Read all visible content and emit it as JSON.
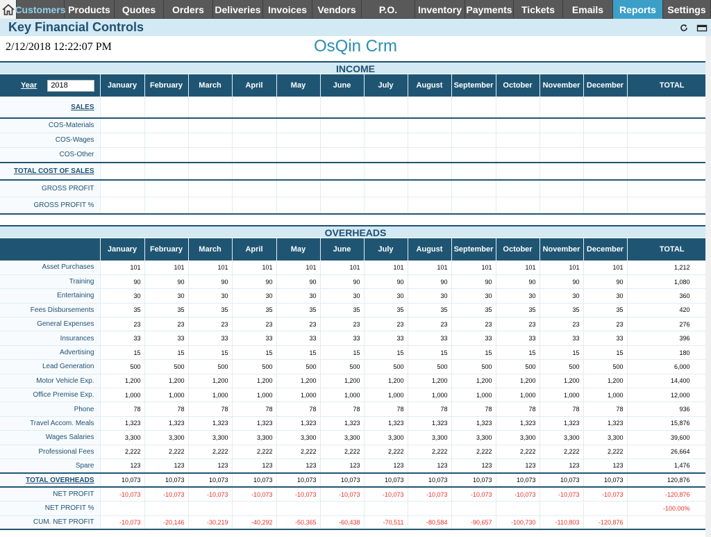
{
  "nav": {
    "items": [
      {
        "key": "customers",
        "label": "Customers",
        "w": 69,
        "state": "muted"
      },
      {
        "key": "products",
        "label": "Products",
        "w": 72
      },
      {
        "key": "quotes",
        "label": "Quotes",
        "w": 71
      },
      {
        "key": "orders",
        "label": "Orders",
        "w": 71
      },
      {
        "key": "deliveries",
        "label": "Deliveries",
        "w": 72
      },
      {
        "key": "invoices",
        "label": "Invoices",
        "w": 71
      },
      {
        "key": "vendors",
        "label": "Vendors",
        "w": 71
      },
      {
        "key": "po",
        "label": "P.O.",
        "w": 77
      },
      {
        "key": "inventory",
        "label": "Inventory",
        "w": 72
      },
      {
        "key": "payments",
        "label": "Payments",
        "w": 70
      },
      {
        "key": "tickets",
        "label": "Tickets",
        "w": 71
      },
      {
        "key": "emails",
        "label": "Emails",
        "w": 72
      },
      {
        "key": "reports",
        "label": "Reports",
        "w": 72,
        "state": "active"
      },
      {
        "key": "settings",
        "label": "Settings",
        "w": 69
      }
    ]
  },
  "header": {
    "title": "Key Financial Controls",
    "datetime": "2/12/2018 12:22:07 PM",
    "brand": "OsQin Crm"
  },
  "months": [
    "January",
    "February",
    "March",
    "April",
    "May",
    "June",
    "July",
    "August",
    "September",
    "October",
    "November",
    "December"
  ],
  "income": {
    "section_title": "INCOME",
    "year_label": "Year",
    "year_value": "2018",
    "total_label": "TOTAL",
    "rows": [
      {
        "label": "SALES",
        "style": "u",
        "thick": true
      },
      {
        "label": "COS-Materials"
      },
      {
        "label": "COS-Wages"
      },
      {
        "label": "COS-Other",
        "thick": true
      },
      {
        "label": "TOTAL COST OF SALES",
        "style": "u",
        "thick": true
      },
      {
        "label": "GROSS PROFIT"
      },
      {
        "label": "GROSS PROFIT %",
        "thick": true
      }
    ]
  },
  "overheads": {
    "section_title": "OVERHEADS",
    "total_label": "TOTAL",
    "rows": [
      {
        "label": "Asset Purchases",
        "values": [
          "101",
          "101",
          "101",
          "101",
          "101",
          "101",
          "101",
          "101",
          "101",
          "101",
          "101",
          "101"
        ],
        "total": "1,212"
      },
      {
        "label": "Training",
        "values": [
          "90",
          "90",
          "90",
          "90",
          "90",
          "90",
          "90",
          "90",
          "90",
          "90",
          "90",
          "90"
        ],
        "total": "1,080"
      },
      {
        "label": "Entertaining",
        "values": [
          "30",
          "30",
          "30",
          "30",
          "30",
          "30",
          "30",
          "30",
          "30",
          "30",
          "30",
          "30"
        ],
        "total": "360"
      },
      {
        "label": "Fees Disbursements",
        "values": [
          "35",
          "35",
          "35",
          "35",
          "35",
          "35",
          "35",
          "35",
          "35",
          "35",
          "35",
          "35"
        ],
        "total": "420"
      },
      {
        "label": "General Expenses",
        "values": [
          "23",
          "23",
          "23",
          "23",
          "23",
          "23",
          "23",
          "23",
          "23",
          "23",
          "23",
          "23"
        ],
        "total": "276"
      },
      {
        "label": "Insurances",
        "values": [
          "33",
          "33",
          "33",
          "33",
          "33",
          "33",
          "33",
          "33",
          "33",
          "33",
          "33",
          "33"
        ],
        "total": "396"
      },
      {
        "label": "Advertising",
        "values": [
          "15",
          "15",
          "15",
          "15",
          "15",
          "15",
          "15",
          "15",
          "15",
          "15",
          "15",
          "15"
        ],
        "total": "180"
      },
      {
        "label": "Lead Generation",
        "values": [
          "500",
          "500",
          "500",
          "500",
          "500",
          "500",
          "500",
          "500",
          "500",
          "500",
          "500",
          "500"
        ],
        "total": "6,000"
      },
      {
        "label": "Motor Vehicle Exp.",
        "values": [
          "1,200",
          "1,200",
          "1,200",
          "1,200",
          "1,200",
          "1,200",
          "1,200",
          "1,200",
          "1,200",
          "1,200",
          "1,200",
          "1,200"
        ],
        "total": "14,400"
      },
      {
        "label": "Office Premise Exp.",
        "values": [
          "1,000",
          "1,000",
          "1,000",
          "1,000",
          "1,000",
          "1,000",
          "1,000",
          "1,000",
          "1,000",
          "1,000",
          "1,000",
          "1,000"
        ],
        "total": "12,000"
      },
      {
        "label": "Phone",
        "values": [
          "78",
          "78",
          "78",
          "78",
          "78",
          "78",
          "78",
          "78",
          "78",
          "78",
          "78",
          "78"
        ],
        "total": "936"
      },
      {
        "label": "Travel Accom. Meals",
        "values": [
          "1,323",
          "1,323",
          "1,323",
          "1,323",
          "1,323",
          "1,323",
          "1,323",
          "1,323",
          "1,323",
          "1,323",
          "1,323",
          "1,323"
        ],
        "total": "15,876"
      },
      {
        "label": "Wages Salaries",
        "values": [
          "3,300",
          "3,300",
          "3,300",
          "3,300",
          "3,300",
          "3,300",
          "3,300",
          "3,300",
          "3,300",
          "3,300",
          "3,300",
          "3,300"
        ],
        "total": "39,600"
      },
      {
        "label": "Professional Fees",
        "values": [
          "2,222",
          "2,222",
          "2,222",
          "2,222",
          "2,222",
          "2,222",
          "2,222",
          "2,222",
          "2,222",
          "2,222",
          "2,222",
          "2,222"
        ],
        "total": "26,664"
      },
      {
        "label": "Spare",
        "values": [
          "123",
          "123",
          "123",
          "123",
          "123",
          "123",
          "123",
          "123",
          "123",
          "123",
          "123",
          "123"
        ],
        "total": "1,476",
        "thick": true
      },
      {
        "label": "TOTAL OVERHEADS",
        "style": "u",
        "values": [
          "10,073",
          "10,073",
          "10,073",
          "10,073",
          "10,073",
          "10,073",
          "10,073",
          "10,073",
          "10,073",
          "10,073",
          "10,073",
          "10,073"
        ],
        "total": "120,876",
        "thick": true
      },
      {
        "label": "NET PROFIT",
        "values": [
          "-10,073",
          "-10,073",
          "-10,073",
          "-10,073",
          "-10,073",
          "-10,073",
          "-10,073",
          "-10,073",
          "-10,073",
          "-10,073",
          "-10,073",
          "-10,073"
        ],
        "total": "-120,876",
        "neg": true
      },
      {
        "label": "NET PROFIT %",
        "values": [
          "",
          "",
          "",
          "",
          "",
          "",
          "",
          "",
          "",
          "",
          "",
          ""
        ],
        "total": "-100.00%",
        "neg": true
      },
      {
        "label": "CUM. NET PROFIT",
        "values": [
          "-10,073",
          "-20,146",
          "-30,219",
          "-40,292",
          "-50,365",
          "-60,438",
          "-70,511",
          "-80,584",
          "-90,657",
          "-100,730",
          "-110,803",
          "-120,876"
        ],
        "total": "",
        "neg": true,
        "thick": true
      }
    ]
  }
}
